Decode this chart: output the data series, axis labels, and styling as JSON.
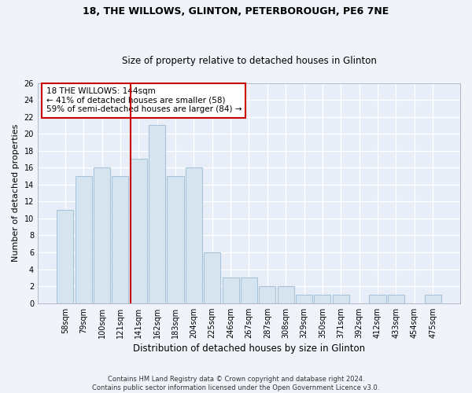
{
  "title1": "18, THE WILLOWS, GLINTON, PETERBOROUGH, PE6 7NE",
  "title2": "Size of property relative to detached houses in Glinton",
  "xlabel": "Distribution of detached houses by size in Glinton",
  "ylabel": "Number of detached properties",
  "categories": [
    "58sqm",
    "79sqm",
    "100sqm",
    "121sqm",
    "141sqm",
    "162sqm",
    "183sqm",
    "204sqm",
    "225sqm",
    "246sqm",
    "267sqm",
    "287sqm",
    "308sqm",
    "329sqm",
    "350sqm",
    "371sqm",
    "392sqm",
    "412sqm",
    "433sqm",
    "454sqm",
    "475sqm"
  ],
  "values": [
    11,
    15,
    16,
    15,
    17,
    21,
    15,
    16,
    6,
    3,
    3,
    2,
    2,
    1,
    1,
    1,
    0,
    1,
    1,
    0,
    1
  ],
  "bar_color": "#d6e4f0",
  "bar_edge_color": "#a8c4d8",
  "property_line_index": 4,
  "annotation_title": "18 THE WILLOWS: 144sqm",
  "annotation_line1": "← 41% of detached houses are smaller (58)",
  "annotation_line2": "59% of semi-detached houses are larger (84) →",
  "annotation_box_color": "#ffffff",
  "annotation_box_edge_color": "#cc0000",
  "vline_color": "#cc0000",
  "ylim": [
    0,
    26
  ],
  "yticks": [
    0,
    2,
    4,
    6,
    8,
    10,
    12,
    14,
    16,
    18,
    20,
    22,
    24,
    26
  ],
  "footer1": "Contains HM Land Registry data © Crown copyright and database right 2024.",
  "footer2": "Contains public sector information licensed under the Open Government Licence v3.0.",
  "bg_color": "#f0f4fa",
  "plot_bg_color": "#e8eef8",
  "grid_color": "#ffffff",
  "title_fontsize": 9,
  "subtitle_fontsize": 8.5,
  "xlabel_fontsize": 8.5,
  "ylabel_fontsize": 8,
  "tick_fontsize": 7,
  "annotation_fontsize": 7.5,
  "footer_fontsize": 6
}
